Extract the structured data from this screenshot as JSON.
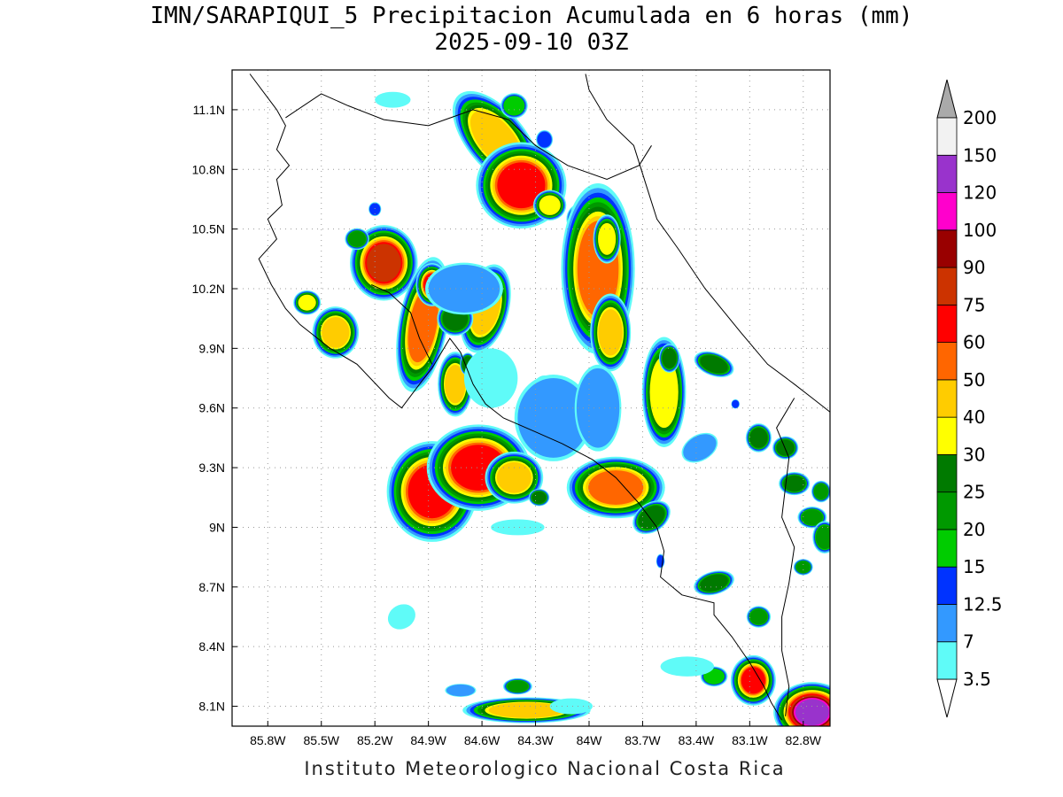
{
  "title": {
    "line1": "IMN/SARAPIQUI_5 Precipitacion Acumulada en 6 horas (mm)",
    "line2": "2025-09-10 03Z"
  },
  "footer": "Instituto Meteorologico Nacional Costa Rica",
  "map": {
    "lon_range": [
      -86.0,
      -82.65
    ],
    "lat_range": [
      8.0,
      11.3
    ],
    "lon_ticks": [
      {
        "v": -85.8,
        "label": "85.8W"
      },
      {
        "v": -85.5,
        "label": "85.5W"
      },
      {
        "v": -85.2,
        "label": "85.2W"
      },
      {
        "v": -84.9,
        "label": "84.9W"
      },
      {
        "v": -84.6,
        "label": "84.6W"
      },
      {
        "v": -84.3,
        "label": "84.3W"
      },
      {
        "v": -84.0,
        "label": "84W"
      },
      {
        "v": -83.7,
        "label": "83.7W"
      },
      {
        "v": -83.4,
        "label": "83.4W"
      },
      {
        "v": -83.1,
        "label": "83.1W"
      },
      {
        "v": -82.8,
        "label": "82.8W"
      }
    ],
    "lat_ticks": [
      {
        "v": 8.1,
        "label": "8.1N"
      },
      {
        "v": 8.4,
        "label": "8.4N"
      },
      {
        "v": 8.7,
        "label": "8.7N"
      },
      {
        "v": 9.0,
        "label": "9N"
      },
      {
        "v": 9.3,
        "label": "9.3N"
      },
      {
        "v": 9.6,
        "label": "9.6N"
      },
      {
        "v": 9.9,
        "label": "9.9N"
      },
      {
        "v": 10.2,
        "label": "10.2N"
      },
      {
        "v": 10.5,
        "label": "10.5N"
      },
      {
        "v": 10.8,
        "label": "10.8N"
      },
      {
        "v": 11.1,
        "label": "11.1N"
      }
    ],
    "grid": true,
    "coastlines": [
      [
        [
          -85.9,
          11.28
        ],
        [
          -85.75,
          11.1
        ],
        [
          -85.7,
          11.02
        ],
        [
          -85.75,
          10.9
        ],
        [
          -85.68,
          10.82
        ],
        [
          -85.75,
          10.75
        ],
        [
          -85.72,
          10.62
        ],
        [
          -85.8,
          10.55
        ],
        [
          -85.75,
          10.45
        ],
        [
          -85.85,
          10.35
        ],
        [
          -85.78,
          10.22
        ],
        [
          -85.7,
          10.1
        ],
        [
          -85.62,
          10.02
        ],
        [
          -85.45,
          9.9
        ],
        [
          -85.3,
          9.82
        ],
        [
          -85.12,
          9.65
        ],
        [
          -85.05,
          9.6
        ],
        [
          -84.95,
          9.72
        ],
        [
          -84.88,
          9.8
        ],
        [
          -84.78,
          9.95
        ],
        [
          -84.72,
          9.88
        ],
        [
          -84.65,
          9.72
        ],
        [
          -84.58,
          9.62
        ],
        [
          -84.48,
          9.55
        ],
        [
          -84.3,
          9.48
        ],
        [
          -84.15,
          9.42
        ],
        [
          -83.98,
          9.34
        ],
        [
          -83.85,
          9.25
        ],
        [
          -83.72,
          9.12
        ],
        [
          -83.62,
          9.0
        ],
        [
          -83.58,
          8.88
        ],
        [
          -83.6,
          8.75
        ],
        [
          -83.48,
          8.66
        ],
        [
          -83.3,
          8.62
        ],
        [
          -83.3,
          8.56
        ],
        [
          -83.2,
          8.45
        ],
        [
          -83.1,
          8.32
        ],
        [
          -83.02,
          8.2
        ],
        [
          -82.98,
          8.12
        ],
        [
          -82.92,
          8.03
        ]
      ],
      [
        [
          -84.88,
          9.82
        ],
        [
          -84.95,
          9.95
        ],
        [
          -85.0,
          10.08
        ],
        [
          -85.12,
          10.18
        ],
        [
          -85.22,
          10.22
        ]
      ],
      [
        [
          -84.02,
          11.28
        ],
        [
          -84.0,
          11.2
        ],
        [
          -83.9,
          11.05
        ],
        [
          -83.75,
          10.92
        ],
        [
          -83.68,
          10.72
        ],
        [
          -83.62,
          10.55
        ],
        [
          -83.5,
          10.4
        ],
        [
          -83.35,
          10.2
        ],
        [
          -83.15,
          9.98
        ],
        [
          -83.0,
          9.82
        ],
        [
          -82.85,
          9.72
        ],
        [
          -82.75,
          9.65
        ],
        [
          -82.65,
          9.58
        ]
      ]
    ],
    "borders": [
      [
        [
          -85.7,
          11.06
        ],
        [
          -85.5,
          11.18
        ],
        [
          -85.35,
          11.12
        ],
        [
          -85.15,
          11.05
        ],
        [
          -84.9,
          11.02
        ],
        [
          -84.65,
          11.1
        ],
        [
          -84.45,
          11.05
        ],
        [
          -84.3,
          10.92
        ],
        [
          -84.12,
          10.82
        ],
        [
          -83.9,
          10.75
        ],
        [
          -83.72,
          10.82
        ],
        [
          -83.65,
          10.92
        ]
      ],
      [
        [
          -82.85,
          9.65
        ],
        [
          -82.95,
          9.5
        ],
        [
          -82.88,
          9.35
        ],
        [
          -82.9,
          9.2
        ],
        [
          -82.92,
          9.05
        ],
        [
          -82.85,
          8.9
        ],
        [
          -82.88,
          8.72
        ],
        [
          -82.92,
          8.55
        ],
        [
          -82.92,
          8.38
        ],
        [
          -82.88,
          8.2
        ],
        [
          -82.9,
          8.05
        ]
      ]
    ]
  },
  "colorbar": {
    "levels": [
      "3.5",
      "7",
      "12.5",
      "15",
      "20",
      "25",
      "30",
      "40",
      "50",
      "60",
      "75",
      "90",
      "100",
      "120",
      "150",
      "200"
    ],
    "colors": [
      "#5ffbf8",
      "#3399ff",
      "#0033ff",
      "#00cc00",
      "#009900",
      "#007a00",
      "#ffff00",
      "#ffcc00",
      "#ff6600",
      "#ff0000",
      "#cc3300",
      "#990000",
      "#ff00cc",
      "#9933cc",
      "#f2f2f2",
      "#aaaaaa"
    ]
  },
  "precip_cells": [
    {
      "lon": -84.52,
      "lat": 10.95,
      "rx": 0.1,
      "ry": 0.18,
      "rot": -40,
      "v": 45
    },
    {
      "lon": -84.38,
      "lat": 10.72,
      "rx": 0.14,
      "ry": 0.12,
      "rot": 0,
      "v": 65
    },
    {
      "lon": -84.22,
      "lat": 10.62,
      "rx": 0.06,
      "ry": 0.05,
      "rot": 0,
      "v": 35
    },
    {
      "lon": -84.05,
      "lat": 10.55,
      "rx": 0.05,
      "ry": 0.05,
      "rot": 0,
      "v": 35
    },
    {
      "lon": -84.42,
      "lat": 11.12,
      "rx": 0.06,
      "ry": 0.05,
      "rot": 0,
      "v": 17
    },
    {
      "lon": -84.25,
      "lat": 10.95,
      "rx": 0.04,
      "ry": 0.04,
      "rot": 0,
      "v": 14
    },
    {
      "lon": -83.95,
      "lat": 10.3,
      "rx": 0.12,
      "ry": 0.25,
      "rot": 0,
      "v": 55
    },
    {
      "lon": -83.88,
      "lat": 9.98,
      "rx": 0.07,
      "ry": 0.12,
      "rot": 0,
      "v": 45
    },
    {
      "lon": -83.9,
      "lat": 10.45,
      "rx": 0.05,
      "ry": 0.08,
      "rot": 0,
      "v": 30
    },
    {
      "lon": -83.58,
      "lat": 9.68,
      "rx": 0.08,
      "ry": 0.18,
      "rot": 0,
      "v": 35
    },
    {
      "lon": -83.55,
      "lat": 9.85,
      "rx": 0.04,
      "ry": 0.05,
      "rot": 0,
      "v": 26
    },
    {
      "lon": -83.3,
      "lat": 9.82,
      "rx": 0.08,
      "ry": 0.04,
      "rot": 20,
      "v": 28
    },
    {
      "lon": -83.18,
      "lat": 9.62,
      "rx": 0.02,
      "ry": 0.02,
      "rot": 0,
      "v": 14
    },
    {
      "lon": -85.15,
      "lat": 10.33,
      "rx": 0.1,
      "ry": 0.1,
      "rot": 0,
      "v": 75
    },
    {
      "lon": -84.93,
      "lat": 10.02,
      "rx": 0.08,
      "ry": 0.2,
      "rot": 10,
      "v": 55
    },
    {
      "lon": -84.88,
      "lat": 10.22,
      "rx": 0.05,
      "ry": 0.06,
      "rot": 0,
      "v": 60
    },
    {
      "lon": -84.58,
      "lat": 10.1,
      "rx": 0.08,
      "ry": 0.14,
      "rot": 15,
      "v": 45
    },
    {
      "lon": -84.75,
      "lat": 10.05,
      "rx": 0.07,
      "ry": 0.06,
      "rot": 0,
      "v": 28
    },
    {
      "lon": -85.42,
      "lat": 9.98,
      "rx": 0.08,
      "ry": 0.08,
      "rot": 0,
      "v": 45
    },
    {
      "lon": -85.58,
      "lat": 10.13,
      "rx": 0.05,
      "ry": 0.04,
      "rot": 0,
      "v": 30
    },
    {
      "lon": -85.3,
      "lat": 10.45,
      "rx": 0.05,
      "ry": 0.04,
      "rot": 0,
      "v": 20
    },
    {
      "lon": -84.75,
      "lat": 9.72,
      "rx": 0.06,
      "ry": 0.1,
      "rot": 0,
      "v": 45
    },
    {
      "lon": -84.68,
      "lat": 9.82,
      "rx": 0.03,
      "ry": 0.04,
      "rot": 0,
      "v": 25
    },
    {
      "lon": -84.25,
      "lat": 9.7,
      "rx": 0.05,
      "ry": 0.05,
      "rot": 0,
      "v": 18
    },
    {
      "lon": -84.15,
      "lat": 9.62,
      "rx": 0.04,
      "ry": 0.04,
      "rot": 0,
      "v": 14
    },
    {
      "lon": -84.88,
      "lat": 9.18,
      "rx": 0.14,
      "ry": 0.14,
      "rot": 0,
      "v": 70
    },
    {
      "lon": -84.62,
      "lat": 9.3,
      "rx": 0.16,
      "ry": 0.12,
      "rot": 0,
      "v": 65
    },
    {
      "lon": -84.42,
      "lat": 9.25,
      "rx": 0.1,
      "ry": 0.08,
      "rot": 0,
      "v": 40
    },
    {
      "lon": -84.28,
      "lat": 9.15,
      "rx": 0.04,
      "ry": 0.03,
      "rot": 0,
      "v": 26
    },
    {
      "lon": -83.85,
      "lat": 9.2,
      "rx": 0.16,
      "ry": 0.09,
      "rot": 0,
      "v": 55
    },
    {
      "lon": -83.65,
      "lat": 9.05,
      "rx": 0.08,
      "ry": 0.05,
      "rot": -35,
      "v": 28
    },
    {
      "lon": -83.6,
      "lat": 8.83,
      "rx": 0.02,
      "ry": 0.03,
      "rot": 0,
      "v": 14
    },
    {
      "lon": -83.3,
      "lat": 8.72,
      "rx": 0.08,
      "ry": 0.04,
      "rot": -15,
      "v": 26
    },
    {
      "lon": -83.05,
      "lat": 8.55,
      "rx": 0.05,
      "ry": 0.04,
      "rot": 0,
      "v": 24
    },
    {
      "lon": -83.08,
      "lat": 8.23,
      "rx": 0.07,
      "ry": 0.07,
      "rot": 0,
      "v": 60
    },
    {
      "lon": -83.3,
      "lat": 8.25,
      "rx": 0.06,
      "ry": 0.04,
      "rot": 0,
      "v": 18
    },
    {
      "lon": -82.75,
      "lat": 8.07,
      "rx": 0.1,
      "ry": 0.07,
      "rot": 0,
      "v": 120
    },
    {
      "lon": -83.05,
      "lat": 9.45,
      "rx": 0.05,
      "ry": 0.05,
      "rot": 0,
      "v": 26
    },
    {
      "lon": -82.9,
      "lat": 9.4,
      "rx": 0.05,
      "ry": 0.04,
      "rot": 0,
      "v": 25
    },
    {
      "lon": -82.85,
      "lat": 9.22,
      "rx": 0.06,
      "ry": 0.04,
      "rot": 0,
      "v": 26
    },
    {
      "lon": -82.7,
      "lat": 9.18,
      "rx": 0.04,
      "ry": 0.04,
      "rot": 0,
      "v": 24
    },
    {
      "lon": -82.75,
      "lat": 9.05,
      "rx": 0.06,
      "ry": 0.04,
      "rot": 0,
      "v": 22
    },
    {
      "lon": -82.68,
      "lat": 8.95,
      "rx": 0.05,
      "ry": 0.06,
      "rot": 0,
      "v": 20
    },
    {
      "lon": -82.8,
      "lat": 8.8,
      "rx": 0.04,
      "ry": 0.03,
      "rot": 0,
      "v": 20
    },
    {
      "lon": -84.35,
      "lat": 8.08,
      "rx": 0.22,
      "ry": 0.04,
      "rot": 0,
      "v": 40
    },
    {
      "lon": -84.4,
      "lat": 8.2,
      "rx": 0.06,
      "ry": 0.03,
      "rot": 0,
      "v": 20
    },
    {
      "lon": -84.72,
      "lat": 8.18,
      "rx": 0.08,
      "ry": 0.03,
      "rot": 0,
      "v": 8
    },
    {
      "lon": -84.2,
      "lat": 9.55,
      "rx": 0.2,
      "ry": 0.2,
      "rot": 0,
      "v": 8
    },
    {
      "lon": -84.55,
      "lat": 9.75,
      "rx": 0.15,
      "ry": 0.15,
      "rot": 0,
      "v": 6
    },
    {
      "lon": -83.95,
      "lat": 9.6,
      "rx": 0.12,
      "ry": 0.2,
      "rot": 0,
      "v": 8
    },
    {
      "lon": -84.7,
      "lat": 10.2,
      "rx": 0.2,
      "ry": 0.12,
      "rot": 0,
      "v": 8
    },
    {
      "lon": -85.05,
      "lat": 8.55,
      "rx": 0.08,
      "ry": 0.06,
      "rot": -30,
      "v": 5
    },
    {
      "lon": -83.38,
      "lat": 9.4,
      "rx": 0.1,
      "ry": 0.06,
      "rot": -30,
      "v": 8
    },
    {
      "lon": -84.4,
      "lat": 9.0,
      "rx": 0.15,
      "ry": 0.04,
      "rot": 0,
      "v": 4
    },
    {
      "lon": -83.45,
      "lat": 8.3,
      "rx": 0.15,
      "ry": 0.05,
      "rot": 0,
      "v": 5
    },
    {
      "lon": -85.1,
      "lat": 11.15,
      "rx": 0.1,
      "ry": 0.04,
      "rot": 0,
      "v": 5
    },
    {
      "lon": -84.1,
      "lat": 8.1,
      "rx": 0.12,
      "ry": 0.04,
      "rot": 0,
      "v": 6
    },
    {
      "lon": -85.2,
      "lat": 10.6,
      "rx": 0.03,
      "ry": 0.03,
      "rot": 0,
      "v": 14
    }
  ]
}
